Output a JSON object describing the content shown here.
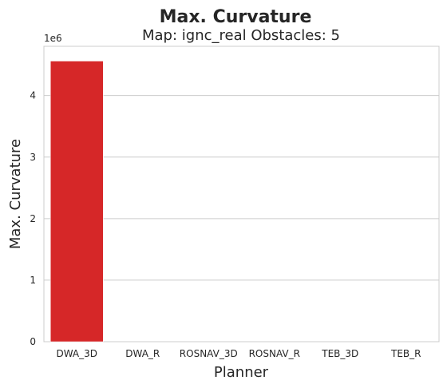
{
  "chart_data": {
    "type": "bar",
    "suptitle": "Max. Curvature",
    "title": "Map: ignc_real Obstacles: 5",
    "xlabel": "Planner",
    "ylabel": "Max. Curvature",
    "scale_label": "1e6",
    "categories": [
      "DWA_3D",
      "DWA_R",
      "ROSNAV_3D",
      "ROSNAV_R",
      "TEB_3D",
      "TEB_R"
    ],
    "values": [
      4560000,
      0,
      0,
      0,
      0,
      0
    ],
    "ylim": [
      0,
      4800000
    ],
    "yticks": [
      0,
      1000000,
      2000000,
      3000000,
      4000000
    ],
    "ytick_labels": [
      "0",
      "1",
      "2",
      "3",
      "4"
    ],
    "grid": true,
    "colors": {
      "bars": [
        "#d62728",
        "#d62728",
        "#d62728",
        "#d62728",
        "#d62728",
        "#d62728"
      ],
      "grid": "#cccccc",
      "spine": "#cccccc"
    }
  }
}
